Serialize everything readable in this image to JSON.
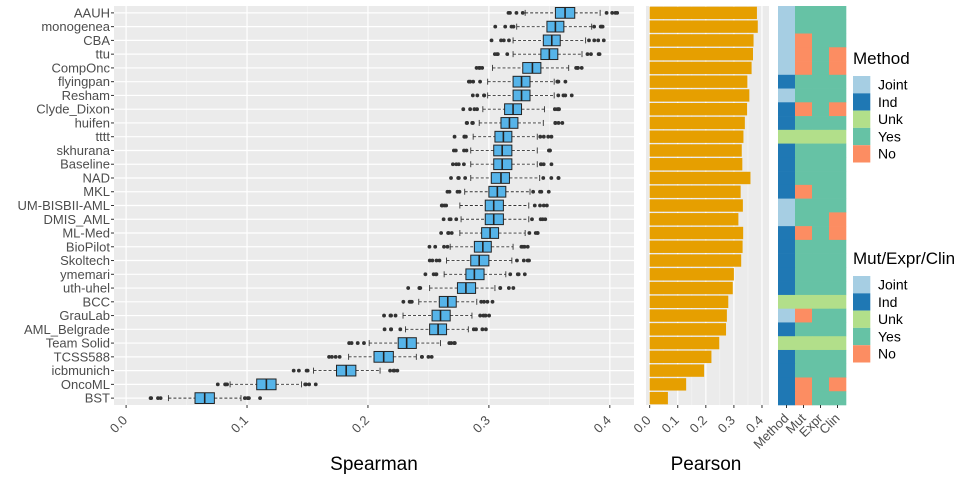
{
  "chart_data": [
    {
      "type": "boxplot",
      "xlabel": "Spearman",
      "xlim": [
        -0.01,
        0.42
      ],
      "xticks": [
        "0.0",
        "0.1",
        "0.2",
        "0.3",
        "0.4"
      ],
      "grid": true,
      "categories": [
        "AAUH",
        "monogenea",
        "CBA",
        "ttu",
        "CompOnc",
        "flyingpan",
        "Resham",
        "Clyde_Dixon",
        "huifen",
        "tttt",
        "skhurana",
        "Baseline",
        "NAD",
        "MKL",
        "UM-BISBII-AML",
        "DMIS_AML",
        "ML-Med",
        "BioPilot",
        "Skoltech",
        "ymemari",
        "uth-uhel",
        "BCC",
        "GrauLab",
        "AML_Belgrade",
        "Team Solid",
        "TCSS588",
        "icbmunich",
        "OncoML",
        "BST"
      ],
      "box_color": "#56B4E9",
      "boxes": [
        {
          "q1": 0.355,
          "med": 0.363,
          "q3": 0.371,
          "wlo": 0.33,
          "whi": 0.392
        },
        {
          "q1": 0.348,
          "med": 0.355,
          "q3": 0.362,
          "wlo": 0.323,
          "whi": 0.385
        },
        {
          "q1": 0.345,
          "med": 0.352,
          "q3": 0.359,
          "wlo": 0.32,
          "whi": 0.38
        },
        {
          "q1": 0.343,
          "med": 0.35,
          "q3": 0.357,
          "wlo": 0.32,
          "whi": 0.377
        },
        {
          "q1": 0.328,
          "med": 0.336,
          "q3": 0.343,
          "wlo": 0.303,
          "whi": 0.366
        },
        {
          "q1": 0.32,
          "med": 0.327,
          "q3": 0.334,
          "wlo": 0.299,
          "whi": 0.354
        },
        {
          "q1": 0.32,
          "med": 0.327,
          "q3": 0.334,
          "wlo": 0.299,
          "whi": 0.354
        },
        {
          "q1": 0.313,
          "med": 0.32,
          "q3": 0.327,
          "wlo": 0.295,
          "whi": 0.346
        },
        {
          "q1": 0.31,
          "med": 0.317,
          "q3": 0.324,
          "wlo": 0.292,
          "whi": 0.345
        },
        {
          "q1": 0.305,
          "med": 0.312,
          "q3": 0.319,
          "wlo": 0.287,
          "whi": 0.34
        },
        {
          "q1": 0.304,
          "med": 0.311,
          "q3": 0.319,
          "wlo": 0.285,
          "whi": 0.34
        },
        {
          "q1": 0.304,
          "med": 0.311,
          "q3": 0.319,
          "wlo": 0.285,
          "whi": 0.34
        },
        {
          "q1": 0.302,
          "med": 0.31,
          "q3": 0.317,
          "wlo": 0.285,
          "whi": 0.342
        },
        {
          "q1": 0.3,
          "med": 0.307,
          "q3": 0.314,
          "wlo": 0.28,
          "whi": 0.334
        },
        {
          "q1": 0.297,
          "med": 0.304,
          "q3": 0.312,
          "wlo": 0.276,
          "whi": 0.333
        },
        {
          "q1": 0.297,
          "med": 0.304,
          "q3": 0.312,
          "wlo": 0.277,
          "whi": 0.333
        },
        {
          "q1": 0.294,
          "med": 0.301,
          "q3": 0.308,
          "wlo": 0.276,
          "whi": 0.33
        },
        {
          "q1": 0.288,
          "med": 0.295,
          "q3": 0.302,
          "wlo": 0.268,
          "whi": 0.32
        },
        {
          "q1": 0.285,
          "med": 0.292,
          "q3": 0.3,
          "wlo": 0.265,
          "whi": 0.319
        },
        {
          "q1": 0.281,
          "med": 0.288,
          "q3": 0.296,
          "wlo": 0.263,
          "whi": 0.314
        },
        {
          "q1": 0.274,
          "med": 0.281,
          "q3": 0.289,
          "wlo": 0.251,
          "whi": 0.305
        },
        {
          "q1": 0.259,
          "med": 0.266,
          "q3": 0.273,
          "wlo": 0.242,
          "whi": 0.29
        },
        {
          "q1": 0.253,
          "med": 0.26,
          "q3": 0.268,
          "wlo": 0.229,
          "whi": 0.286
        },
        {
          "q1": 0.251,
          "med": 0.258,
          "q3": 0.265,
          "wlo": 0.231,
          "whi": 0.283
        },
        {
          "q1": 0.225,
          "med": 0.232,
          "q3": 0.24,
          "wlo": 0.201,
          "whi": 0.26
        },
        {
          "q1": 0.205,
          "med": 0.213,
          "q3": 0.221,
          "wlo": 0.184,
          "whi": 0.24
        },
        {
          "q1": 0.174,
          "med": 0.182,
          "q3": 0.19,
          "wlo": 0.155,
          "whi": 0.21
        },
        {
          "q1": 0.108,
          "med": 0.116,
          "q3": 0.124,
          "wlo": 0.086,
          "whi": 0.145
        },
        {
          "q1": 0.057,
          "med": 0.065,
          "q3": 0.073,
          "wlo": 0.035,
          "whi": 0.095
        }
      ]
    },
    {
      "type": "bar",
      "orientation": "horizontal",
      "xlabel": "Pearson",
      "xlim": [
        -0.013,
        0.425
      ],
      "xticks": [
        "0.0",
        "0.1",
        "0.2",
        "0.3",
        "0.4"
      ],
      "bar_color": "#E69F00",
      "values": [
        0.382,
        0.385,
        0.37,
        0.368,
        0.363,
        0.348,
        0.355,
        0.347,
        0.339,
        0.334,
        0.328,
        0.33,
        0.359,
        0.324,
        0.332,
        0.316,
        0.333,
        0.331,
        0.326,
        0.3,
        0.296,
        0.28,
        0.275,
        0.272,
        0.248,
        0.22,
        0.194,
        0.13,
        0.065
      ]
    },
    {
      "type": "heatmap",
      "columns": [
        "Method",
        "Mut",
        "Expr",
        "Clin"
      ],
      "codes": {
        "J": "Joint",
        "I": "Ind",
        "U": "Unk",
        "Y": "Yes",
        "N": "No"
      },
      "colors": {
        "J": "#A6CEE3",
        "I": "#1F78B4",
        "U": "#B2DF8A",
        "Y": "#66C2A5",
        "N": "#FC8D62"
      },
      "rows": [
        [
          "J",
          "Y",
          "Y",
          "Y"
        ],
        [
          "J",
          "Y",
          "Y",
          "Y"
        ],
        [
          "J",
          "N",
          "Y",
          "Y"
        ],
        [
          "J",
          "N",
          "Y",
          "N"
        ],
        [
          "J",
          "N",
          "Y",
          "N"
        ],
        [
          "I",
          "Y",
          "Y",
          "Y"
        ],
        [
          "J",
          "Y",
          "Y",
          "Y"
        ],
        [
          "I",
          "N",
          "Y",
          "N"
        ],
        [
          "I",
          "Y",
          "Y",
          "Y"
        ],
        [
          "U",
          "U",
          "U",
          "U"
        ],
        [
          "I",
          "Y",
          "Y",
          "Y"
        ],
        [
          "I",
          "Y",
          "Y",
          "Y"
        ],
        [
          "I",
          "Y",
          "Y",
          "Y"
        ],
        [
          "I",
          "N",
          "Y",
          "Y"
        ],
        [
          "J",
          "Y",
          "Y",
          "Y"
        ],
        [
          "J",
          "Y",
          "Y",
          "N"
        ],
        [
          "I",
          "N",
          "Y",
          "N"
        ],
        [
          "I",
          "Y",
          "Y",
          "Y"
        ],
        [
          "I",
          "Y",
          "Y",
          "Y"
        ],
        [
          "I",
          "Y",
          "Y",
          "Y"
        ],
        [
          "I",
          "Y",
          "Y",
          "Y"
        ],
        [
          "U",
          "U",
          "U",
          "U"
        ],
        [
          "J",
          "N",
          "Y",
          "Y"
        ],
        [
          "I",
          "Y",
          "Y",
          "Y"
        ],
        [
          "U",
          "U",
          "U",
          "U"
        ],
        [
          "I",
          "Y",
          "Y",
          "Y"
        ],
        [
          "I",
          "Y",
          "Y",
          "Y"
        ],
        [
          "I",
          "N",
          "Y",
          "N"
        ],
        [
          "I",
          "N",
          "Y",
          "Y"
        ]
      ]
    }
  ],
  "legends": [
    {
      "title": "Method",
      "items": [
        "Joint",
        "Ind",
        "Unk",
        "Yes",
        "No"
      ]
    },
    {
      "title": "Mut/Expr/Clin",
      "items": [
        "Joint",
        "Ind",
        "Unk",
        "Yes",
        "No"
      ]
    }
  ]
}
